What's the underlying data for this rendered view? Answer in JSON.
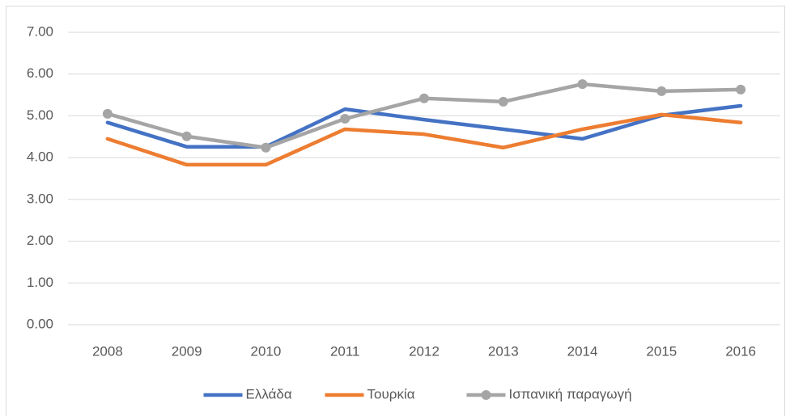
{
  "chart_data": {
    "type": "line",
    "categories": [
      "2008",
      "2009",
      "2010",
      "2011",
      "2012",
      "2013",
      "2014",
      "2015",
      "2016"
    ],
    "series": [
      {
        "name": "Ελλάδα",
        "color": "#4472c4",
        "values": [
          4.84,
          4.26,
          4.26,
          5.16,
          4.91,
          4.68,
          4.45,
          5.01,
          5.24
        ]
      },
      {
        "name": "Τουρκία",
        "color": "#ed7d31",
        "values": [
          4.45,
          3.83,
          3.83,
          4.68,
          4.56,
          4.24,
          4.68,
          5.03,
          4.84
        ]
      },
      {
        "name": "Ισπανική παραγωγή",
        "color": "#a5a5a5",
        "markers": true,
        "values": [
          5.05,
          4.51,
          4.24,
          4.93,
          5.42,
          5.34,
          5.76,
          5.59,
          5.63
        ]
      }
    ],
    "ylim": [
      0,
      7
    ],
    "yticks": [
      {
        "value": 0,
        "label": "0.00"
      },
      {
        "value": 1,
        "label": "1.00"
      },
      {
        "value": 2,
        "label": "2.00"
      },
      {
        "value": 3,
        "label": "3.00"
      },
      {
        "value": 4,
        "label": "4.00"
      },
      {
        "value": 5,
        "label": "5.00"
      },
      {
        "value": 6,
        "label": "6.00"
      },
      {
        "value": 7,
        "label": "7.00"
      }
    ],
    "grid": true,
    "legend": "bottom"
  }
}
